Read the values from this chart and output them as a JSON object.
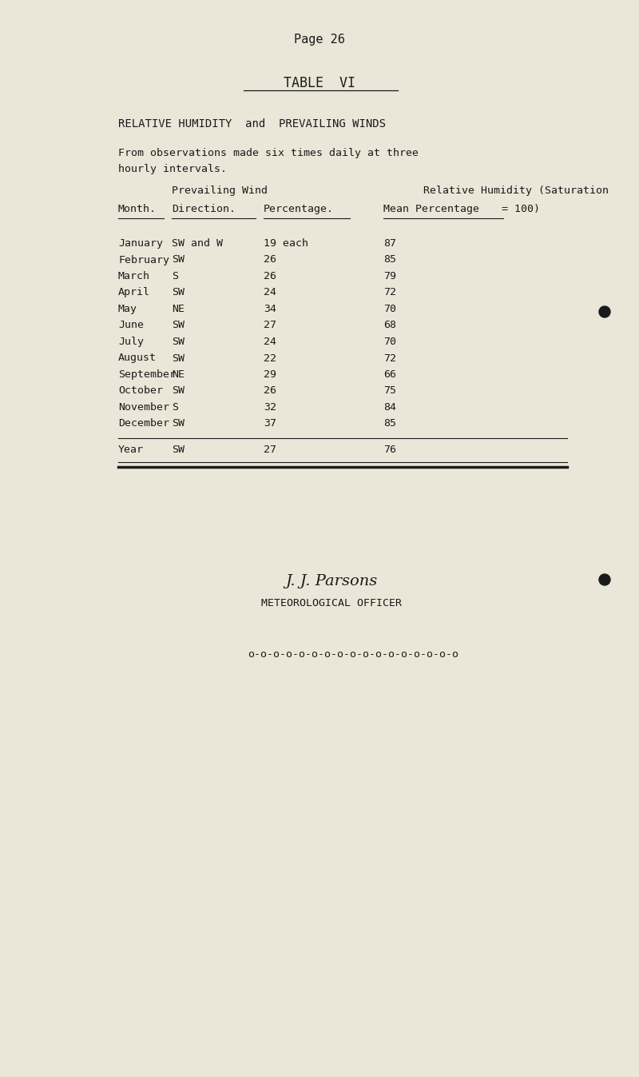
{
  "page_label": "Page 26",
  "table_label": "TABLE  VI",
  "subtitle": "RELATIVE HUMIDITY  and  PREVAILING WINDS",
  "description_line1": "From observations made six times daily at three",
  "description_line2": "hourly intervals.",
  "col_header_group1": "Prevailing Wind",
  "col_header_group2": "Relative Humidity (Saturation",
  "col_subhead_month": "Month.",
  "col_subhead_dir": "Direction.",
  "col_subhead_pct": "Percentage.",
  "col_subhead_rh": "Mean Percentage",
  "col_subhead_rh2": "= 100)",
  "rows": [
    [
      "January",
      "SW and W",
      "19 each",
      "87"
    ],
    [
      "February",
      "SW",
      "26",
      "85"
    ],
    [
      "March",
      "S",
      "26",
      "79"
    ],
    [
      "April",
      "SW",
      "24",
      "72"
    ],
    [
      "May",
      "NE",
      "34",
      "70"
    ],
    [
      "June",
      "SW",
      "27",
      "68"
    ],
    [
      "July",
      "SW",
      "24",
      "70"
    ],
    [
      "August",
      "SW",
      "22",
      "72"
    ],
    [
      "September",
      "NE",
      "29",
      "66"
    ],
    [
      "October",
      "SW",
      "26",
      "75"
    ],
    [
      "November",
      "S",
      "32",
      "84"
    ],
    [
      "December",
      "SW",
      "37",
      "85"
    ]
  ],
  "year_row": [
    "Year",
    "SW",
    "27",
    "76"
  ],
  "signature_line": "J. J. Parsons",
  "officer_line": "METEOROLOGICAL OFFICER",
  "separator_line": "o-o-o-o-o-o-o-o-o-o-o-o-o-o-o-o-o",
  "bg_color": "#eae6d8",
  "text_color": "#1a1a1a",
  "font_family": "DejaVu Sans Mono",
  "fig_width": 8.0,
  "fig_height": 13.47,
  "dpi": 100
}
